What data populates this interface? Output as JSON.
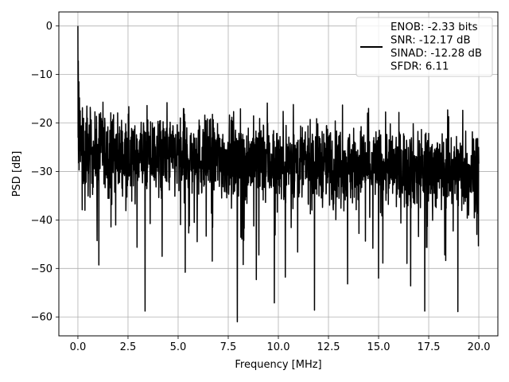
{
  "chart_data": {
    "type": "line",
    "title": "",
    "xlabel": "Frequency [MHz]",
    "ylabel": "PSD [dB]",
    "xlim": [
      -0.95,
      20.95
    ],
    "ylim": [
      -63.9,
      2.9
    ],
    "xticks": [
      0.0,
      2.5,
      5.0,
      7.5,
      10.0,
      12.5,
      15.0,
      17.5,
      20.0
    ],
    "xtick_labels": [
      "0.0",
      "2.5",
      "5.0",
      "7.5",
      "10.0",
      "12.5",
      "15.0",
      "17.5",
      "20.0"
    ],
    "yticks": [
      0,
      -10,
      -20,
      -30,
      -40,
      -50,
      -60
    ],
    "ytick_labels": [
      "0",
      "−10",
      "−20",
      "−30",
      "−40",
      "−50",
      "−60"
    ],
    "grid": true,
    "legend_position": "upper right",
    "legend_entries": [
      "ENOB: -2.33 bits",
      "SNR: -12.17 dB",
      "SINAD: -12.28 dB",
      "SFDR: 6.11"
    ],
    "series": [
      {
        "color": "#000000",
        "x_range": [
          0.0,
          20.0
        ],
        "num_points": 2048,
        "noise_model": {
          "floor_start_db": -26.0,
          "floor_end_db": -30.0,
          "spread_db": 4.0,
          "peak_top_db": -16.5,
          "dip_bottom_db": -50.0
        },
        "low_freq_peaks": [
          {
            "x": 0.0,
            "y": 0.0
          },
          {
            "x": 0.02,
            "y": -7.2
          },
          {
            "x": 0.05,
            "y": -11.5
          },
          {
            "x": 0.08,
            "y": -14.8
          },
          {
            "x": 0.12,
            "y": -17.5
          },
          {
            "x": 0.18,
            "y": -20.6
          }
        ],
        "deep_dips": [
          {
            "x": 0.35,
            "y": -38.0
          },
          {
            "x": 1.05,
            "y": -49.3
          },
          {
            "x": 3.35,
            "y": -58.8
          },
          {
            "x": 4.2,
            "y": -47.5
          },
          {
            "x": 5.35,
            "y": -50.8
          },
          {
            "x": 6.7,
            "y": -48.5
          },
          {
            "x": 7.95,
            "y": -61.0
          },
          {
            "x": 8.25,
            "y": -49.2
          },
          {
            "x": 8.9,
            "y": -52.3
          },
          {
            "x": 9.8,
            "y": -57.1
          },
          {
            "x": 10.35,
            "y": -51.8
          },
          {
            "x": 11.8,
            "y": -58.6
          },
          {
            "x": 13.45,
            "y": -53.2
          },
          {
            "x": 15.0,
            "y": -52.0
          },
          {
            "x": 16.6,
            "y": -53.6
          },
          {
            "x": 17.3,
            "y": -58.8
          },
          {
            "x": 18.3,
            "y": -47.2
          },
          {
            "x": 18.95,
            "y": -58.9
          },
          {
            "x": 19.9,
            "y": -43.0
          }
        ],
        "high_peaks": [
          {
            "x": 0.45,
            "y": -16.5
          },
          {
            "x": 1.25,
            "y": -15.7
          },
          {
            "x": 3.45,
            "y": -16.4
          },
          {
            "x": 4.45,
            "y": -15.8
          },
          {
            "x": 9.45,
            "y": -15.9
          },
          {
            "x": 10.75,
            "y": -16.2
          },
          {
            "x": 13.2,
            "y": -16.3
          },
          {
            "x": 14.5,
            "y": -17.0
          },
          {
            "x": 18.45,
            "y": -17.3
          },
          {
            "x": 19.2,
            "y": -17.4
          }
        ]
      }
    ]
  }
}
